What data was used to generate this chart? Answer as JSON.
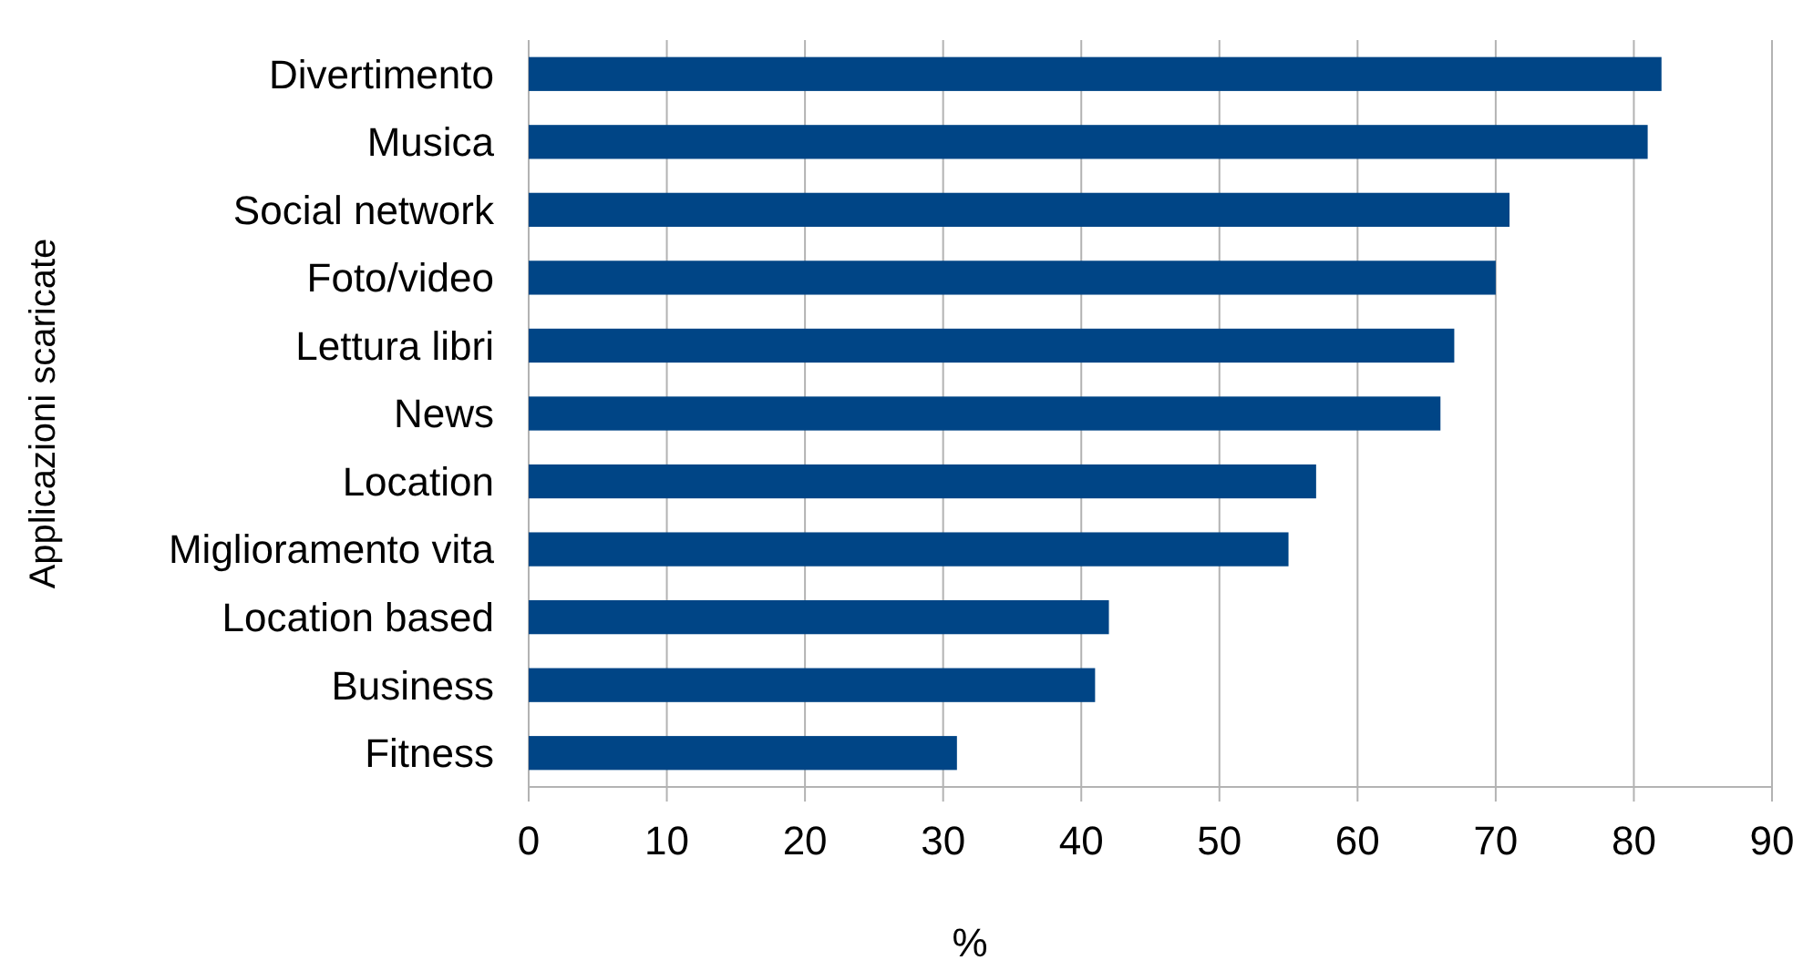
{
  "chart_data": {
    "type": "bar",
    "orientation": "horizontal",
    "xlabel": "%",
    "ylabel": "Applicazioni scaricate",
    "categories": [
      "Divertimento",
      "Musica",
      "Social network",
      "Foto/video",
      "Lettura libri",
      "News",
      "Location",
      "Miglioramento vita",
      "Location based",
      "Business",
      "Fitness"
    ],
    "values": [
      82,
      81,
      71,
      70,
      67,
      66,
      57,
      55,
      42,
      41,
      31
    ],
    "color": "#004586",
    "xlim": [
      0,
      90
    ],
    "xticks": [
      0,
      10,
      20,
      30,
      40,
      50,
      60,
      70,
      80,
      90
    ],
    "grid": "x"
  }
}
